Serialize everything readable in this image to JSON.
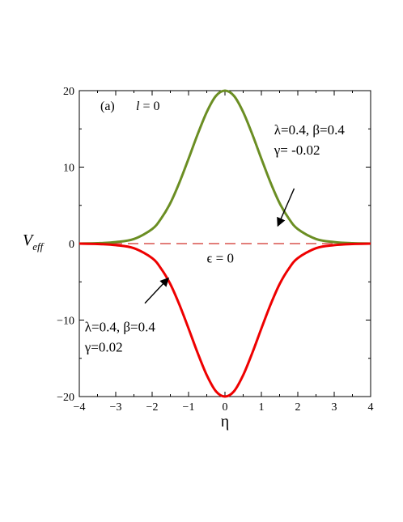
{
  "chart_data": {
    "type": "line",
    "title": "",
    "panel_label": "(a)",
    "param_label_var": "l",
    "param_label_rest": " = 0",
    "xlabel": "η",
    "ylabel_main": "V",
    "ylabel_sub": "eff",
    "xlim": [
      -4,
      4
    ],
    "ylim": [
      -20,
      20
    ],
    "x_ticks": [
      -4,
      -3,
      -2,
      -1,
      0,
      1,
      2,
      3,
      4
    ],
    "x_tick_labels": [
      "−4",
      "−3",
      "−2",
      "−1",
      "0",
      "1",
      "2",
      "3",
      "4"
    ],
    "y_ticks": [
      -20,
      -10,
      0,
      10,
      20
    ],
    "y_tick_labels": [
      "−20",
      "−10",
      "0",
      "10",
      "20"
    ],
    "grid": false,
    "series": [
      {
        "color": "#6b8e23",
        "style": "solid",
        "x": [
          -4,
          -3.5,
          -3,
          -2.5,
          -2,
          -1.75,
          -1.5,
          -1.25,
          -1,
          -0.75,
          -0.5,
          -0.25,
          0,
          0.25,
          0.5,
          0.75,
          1,
          1.25,
          1.5,
          1.75,
          2,
          2.5,
          3,
          3.5,
          4
        ],
        "y": [
          0.0,
          0.05,
          0.2,
          0.6,
          1.9,
          3.3,
          5.3,
          8.0,
          11.1,
          14.3,
          17.2,
          19.3,
          20.0,
          19.3,
          17.2,
          14.3,
          11.1,
          8.0,
          5.3,
          3.3,
          1.9,
          0.6,
          0.2,
          0.05,
          0.0
        ]
      },
      {
        "color": "#ee0000",
        "style": "solid",
        "x": [
          -4,
          -3.5,
          -3,
          -2.5,
          -2,
          -1.75,
          -1.5,
          -1.25,
          -1,
          -0.75,
          -0.5,
          -0.25,
          0,
          0.25,
          0.5,
          0.75,
          1,
          1.25,
          1.5,
          1.75,
          2,
          2.5,
          3,
          3.5,
          4
        ],
        "y": [
          0.0,
          -0.05,
          -0.2,
          -0.6,
          -1.9,
          -3.3,
          -5.3,
          -8.0,
          -11.1,
          -14.3,
          -17.2,
          -19.3,
          -20.0,
          -19.3,
          -17.2,
          -14.3,
          -11.1,
          -8.0,
          -5.3,
          -3.3,
          -1.9,
          -0.6,
          -0.2,
          -0.05,
          0.0
        ]
      },
      {
        "color": "#d9534f",
        "style": "dashed",
        "x": [
          -4,
          4
        ],
        "y": [
          0,
          0
        ]
      }
    ],
    "annotations": [
      {
        "id": "upper",
        "lines": [
          "λ=0.4,  β=0.4",
          "γ= -0.02"
        ],
        "text_x": 1.35,
        "text_y": 14.3,
        "arrow_from": [
          1.9,
          7.2
        ],
        "arrow_to": [
          1.45,
          2.3
        ]
      },
      {
        "id": "lower",
        "lines": [
          "λ=0.4,  β=0.4",
          "γ=0.02"
        ],
        "text_x": -3.85,
        "text_y": -11.5,
        "arrow_from": [
          -2.2,
          -7.8
        ],
        "arrow_to": [
          -1.55,
          -4.5
        ]
      },
      {
        "id": "epsilon",
        "lines": [
          "ϵ = 0"
        ],
        "text_x": -0.5,
        "text_y": -2.5
      }
    ]
  }
}
